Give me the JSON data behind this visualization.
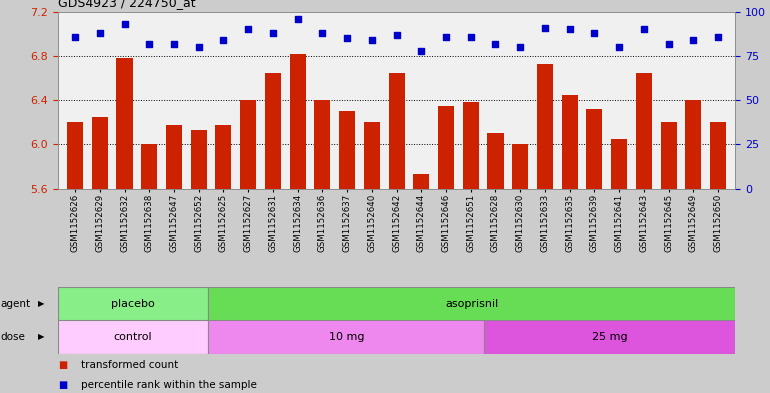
{
  "title": "GDS4923 / 224750_at",
  "samples": [
    "GSM1152626",
    "GSM1152629",
    "GSM1152632",
    "GSM1152638",
    "GSM1152647",
    "GSM1152652",
    "GSM1152625",
    "GSM1152627",
    "GSM1152631",
    "GSM1152634",
    "GSM1152636",
    "GSM1152637",
    "GSM1152640",
    "GSM1152642",
    "GSM1152644",
    "GSM1152646",
    "GSM1152651",
    "GSM1152628",
    "GSM1152630",
    "GSM1152633",
    "GSM1152635",
    "GSM1152639",
    "GSM1152641",
    "GSM1152643",
    "GSM1152645",
    "GSM1152649",
    "GSM1152650"
  ],
  "bar_values": [
    6.2,
    6.25,
    6.78,
    6.0,
    6.18,
    6.13,
    6.18,
    6.4,
    6.65,
    6.82,
    6.4,
    6.3,
    6.2,
    6.65,
    5.73,
    6.35,
    6.38,
    6.1,
    6.0,
    6.73,
    6.45,
    6.32,
    6.05,
    6.65,
    6.2,
    6.4,
    6.2
  ],
  "percentile_values": [
    86,
    88,
    93,
    82,
    82,
    80,
    84,
    90,
    88,
    96,
    88,
    85,
    84,
    87,
    78,
    86,
    86,
    82,
    80,
    91,
    90,
    88,
    80,
    90,
    82,
    84,
    86
  ],
  "ylim_left": [
    5.6,
    7.2
  ],
  "ylim_right": [
    0,
    100
  ],
  "yticks_left": [
    5.6,
    6.0,
    6.4,
    6.8,
    7.2
  ],
  "yticks_right": [
    0,
    25,
    50,
    75,
    100
  ],
  "bar_color": "#cc2200",
  "dot_color": "#0000cc",
  "grid_values": [
    6.0,
    6.4,
    6.8
  ],
  "agent_groups": [
    {
      "label": "placebo",
      "start": 0,
      "end": 6,
      "color": "#88ee88"
    },
    {
      "label": "asoprisnil",
      "start": 6,
      "end": 27,
      "color": "#66dd55"
    }
  ],
  "dose_groups": [
    {
      "label": "control",
      "start": 0,
      "end": 6,
      "color": "#ffccff"
    },
    {
      "label": "10 mg",
      "start": 6,
      "end": 17,
      "color": "#ee88ee"
    },
    {
      "label": "25 mg",
      "start": 17,
      "end": 27,
      "color": "#dd55dd"
    }
  ],
  "legend_items": [
    {
      "label": "transformed count",
      "color": "#cc2200"
    },
    {
      "label": "percentile rank within the sample",
      "color": "#0000cc"
    }
  ],
  "fig_facecolor": "#cccccc",
  "plot_bg": "#f0f0f0"
}
